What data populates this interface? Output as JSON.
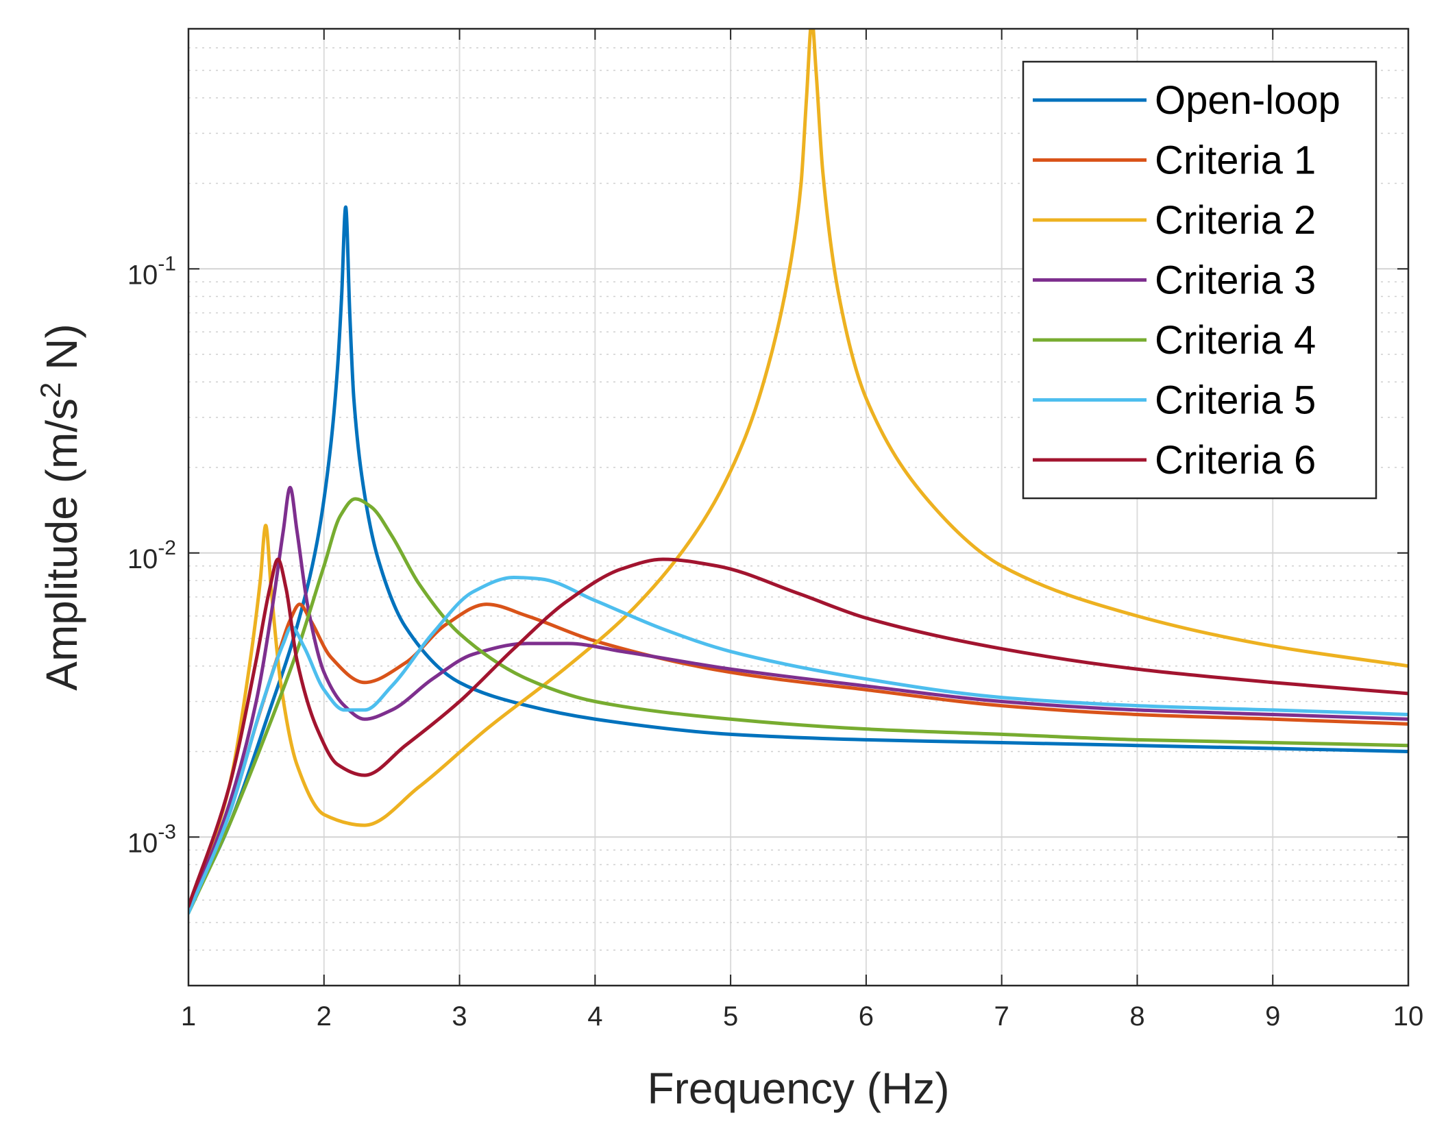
{
  "chart_data": {
    "type": "line",
    "xlabel": "Frequency (Hz)",
    "ylabel": {
      "prefix": "Amplitude (m/s",
      "superscript": "2",
      "suffix": " N)"
    },
    "xlim": [
      1,
      10
    ],
    "ylim": [
      0.0003,
      0.7
    ],
    "yscale": "log",
    "grid": true,
    "legend_position": "top-right",
    "x_ticks": [
      1,
      2,
      3,
      4,
      5,
      6,
      7,
      8,
      9,
      10
    ],
    "x_tick_labels": [
      "1",
      "2",
      "3",
      "4",
      "5",
      "6",
      "7",
      "8",
      "9",
      "10"
    ],
    "y_ticks": [
      0.001,
      0.01,
      0.1
    ],
    "y_tick_labels": [
      {
        "base": "10",
        "exp": "-3"
      },
      {
        "base": "10",
        "exp": "-2"
      },
      {
        "base": "10",
        "exp": "-1"
      }
    ],
    "series": [
      {
        "name": "Open-loop",
        "color": "#0072BD",
        "x": [
          1,
          1.3,
          1.6,
          1.8,
          1.95,
          2.05,
          2.1,
          2.13,
          2.16,
          2.19,
          2.22,
          2.3,
          2.4,
          2.6,
          3,
          3.5,
          4,
          5,
          6,
          7,
          8,
          9,
          10
        ],
        "y": [
          0.00055,
          0.0011,
          0.0028,
          0.0055,
          0.011,
          0.024,
          0.045,
          0.08,
          0.165,
          0.07,
          0.035,
          0.016,
          0.0095,
          0.0055,
          0.0035,
          0.0029,
          0.0026,
          0.0023,
          0.0022,
          0.00215,
          0.0021,
          0.00205,
          0.002
        ]
      },
      {
        "name": "Criteria 1",
        "color": "#D95319",
        "x": [
          1,
          1.3,
          1.5,
          1.65,
          1.75,
          1.82,
          1.9,
          2.05,
          2.3,
          2.6,
          2.9,
          3.2,
          3.5,
          4,
          5,
          6,
          7,
          8,
          9,
          10
        ],
        "y": [
          0.00056,
          0.0012,
          0.0025,
          0.0042,
          0.0058,
          0.0066,
          0.0058,
          0.0043,
          0.0035,
          0.0041,
          0.0056,
          0.0066,
          0.006,
          0.0049,
          0.0038,
          0.0033,
          0.0029,
          0.0027,
          0.0026,
          0.0025
        ]
      },
      {
        "name": "Criteria 2",
        "color": "#EDB120",
        "x": [
          1,
          1.3,
          1.45,
          1.53,
          1.57,
          1.61,
          1.68,
          1.8,
          2,
          2.3,
          2.7,
          3.2,
          3.8,
          4.3,
          4.8,
          5.1,
          5.3,
          5.45,
          5.52,
          5.56,
          5.6,
          5.63,
          5.68,
          5.8,
          6,
          6.5,
          7,
          8,
          9,
          10
        ],
        "y": [
          0.00056,
          0.0015,
          0.004,
          0.008,
          0.0125,
          0.0075,
          0.0035,
          0.0018,
          0.0012,
          0.0011,
          0.0015,
          0.0024,
          0.004,
          0.0065,
          0.013,
          0.025,
          0.05,
          0.11,
          0.2,
          0.4,
          0.75,
          0.5,
          0.22,
          0.08,
          0.035,
          0.0145,
          0.009,
          0.006,
          0.0047,
          0.004
        ]
      },
      {
        "name": "Criteria 3",
        "color": "#7E2F8E",
        "x": [
          1,
          1.3,
          1.5,
          1.62,
          1.7,
          1.75,
          1.8,
          1.88,
          2,
          2.15,
          2.3,
          2.5,
          2.8,
          3.1,
          3.5,
          3.8,
          4.2,
          5,
          6,
          7,
          8,
          9,
          10
        ],
        "y": [
          0.00055,
          0.0013,
          0.003,
          0.0065,
          0.012,
          0.017,
          0.012,
          0.0065,
          0.0038,
          0.0029,
          0.0026,
          0.0028,
          0.0036,
          0.0044,
          0.0048,
          0.0048,
          0.0045,
          0.0039,
          0.0034,
          0.003,
          0.0028,
          0.0027,
          0.0026
        ]
      },
      {
        "name": "Criteria 4",
        "color": "#77AC30",
        "x": [
          1,
          1.3,
          1.6,
          1.8,
          2,
          2.12,
          2.23,
          2.35,
          2.5,
          2.7,
          3,
          3.5,
          4,
          5,
          6,
          7,
          8,
          9,
          10
        ],
        "y": [
          0.00054,
          0.0011,
          0.0025,
          0.0045,
          0.009,
          0.0135,
          0.0155,
          0.0145,
          0.0115,
          0.0078,
          0.0052,
          0.0036,
          0.003,
          0.0026,
          0.0024,
          0.0023,
          0.0022,
          0.00215,
          0.0021
        ]
      },
      {
        "name": "Criteria 5",
        "color": "#4DBEEE",
        "x": [
          1,
          1.3,
          1.55,
          1.7,
          1.76,
          1.85,
          2,
          2.15,
          2.3,
          2.5,
          2.8,
          3.1,
          3.4,
          3.6,
          4,
          4.5,
          5,
          6,
          7,
          8,
          9,
          10
        ],
        "y": [
          0.00054,
          0.0012,
          0.003,
          0.0048,
          0.0055,
          0.0047,
          0.0033,
          0.0028,
          0.0028,
          0.0034,
          0.0052,
          0.0073,
          0.0082,
          0.0081,
          0.0068,
          0.0054,
          0.0045,
          0.0036,
          0.0031,
          0.0029,
          0.0028,
          0.0027
        ]
      },
      {
        "name": "Criteria 6",
        "color": "#A2142F",
        "x": [
          1,
          1.3,
          1.5,
          1.6,
          1.66,
          1.72,
          1.8,
          1.95,
          2.1,
          2.3,
          2.6,
          3,
          3.4,
          3.8,
          4.2,
          4.5,
          4.9,
          5.5,
          6,
          7,
          8,
          9,
          10
        ],
        "y": [
          0.00057,
          0.0015,
          0.0042,
          0.0075,
          0.0095,
          0.0075,
          0.0042,
          0.0024,
          0.0018,
          0.00165,
          0.0021,
          0.003,
          0.0046,
          0.0068,
          0.0088,
          0.0095,
          0.009,
          0.0072,
          0.0059,
          0.0046,
          0.0039,
          0.0035,
          0.0032
        ]
      }
    ]
  }
}
